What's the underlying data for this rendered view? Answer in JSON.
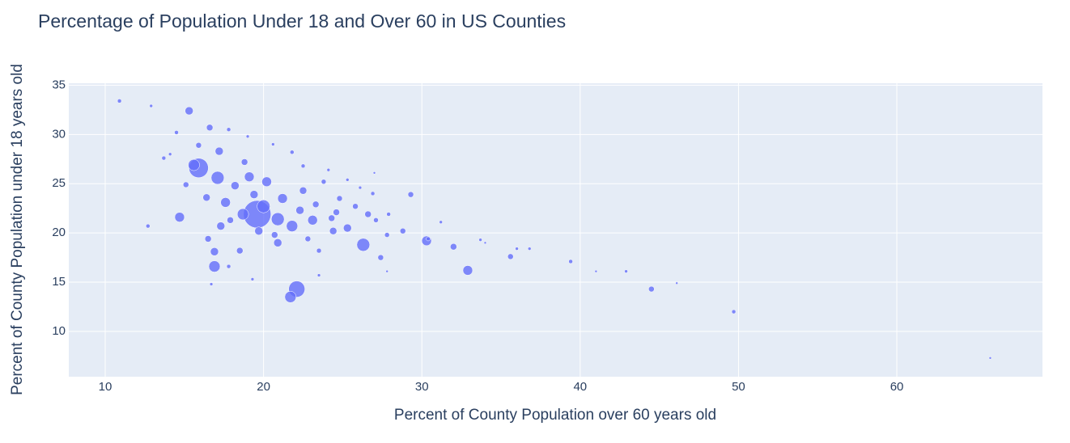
{
  "chart_data": {
    "type": "scatter",
    "title": "Percentage of Population Under 18 and Over 60 in US Counties",
    "x_label": "Percent of County Population over 60 years old",
    "y_label": "Percent of County Population under 18 years old",
    "color": "#636efa",
    "grid": true,
    "xlim": [
      7.7,
      69.2
    ],
    "ylim": [
      5.4,
      35.2
    ],
    "xticks": [
      10,
      20,
      30,
      40,
      50,
      60
    ],
    "yticks": [
      10,
      15,
      20,
      25,
      30,
      35
    ],
    "x": [
      15.9,
      19.6,
      22.1,
      21.7,
      16.9,
      26.3,
      32.9,
      14.7,
      30.3,
      20.9,
      20.0,
      21.8,
      23.1,
      17.1,
      15.3,
      16.6,
      17.2,
      19.1,
      20.2,
      17.6,
      18.2,
      16.9,
      29.3,
      44.5,
      49.7,
      65.9,
      10.9,
      12.9,
      14.5,
      12.7,
      39.4,
      35.6,
      42.9,
      41.0,
      46.1,
      36.8,
      33.7,
      32.0,
      27.4,
      25.3,
      24.3,
      26.6,
      16.4,
      17.9,
      18.5,
      20.9,
      23.5,
      27.8,
      28.8,
      15.6,
      17.3,
      16.5,
      18.8,
      21.8,
      23.8,
      24.8,
      25.8,
      22.5,
      21.2,
      19.4,
      18.7,
      22.3,
      23.3,
      24.6,
      27.1,
      27.9,
      31.2,
      34.0,
      36.0,
      15.1,
      13.7,
      14.1,
      15.9,
      17.8,
      19.0,
      20.6,
      17.8,
      16.7,
      19.3,
      23.5,
      27.8,
      26.9,
      26.1,
      27.0,
      25.3,
      24.1,
      22.5,
      30.4,
      20.7,
      19.7,
      22.8,
      24.4
    ],
    "y": [
      26.6,
      21.9,
      14.3,
      13.5,
      16.6,
      18.8,
      16.2,
      21.6,
      19.2,
      21.4,
      22.7,
      20.7,
      21.3,
      25.6,
      32.4,
      30.7,
      28.3,
      25.7,
      25.2,
      23.1,
      24.8,
      18.1,
      23.9,
      14.3,
      12.0,
      7.3,
      33.4,
      32.9,
      30.2,
      20.7,
      17.1,
      17.6,
      16.1,
      16.1,
      14.9,
      18.4,
      19.3,
      18.6,
      17.5,
      20.5,
      21.5,
      21.9,
      23.6,
      21.3,
      18.2,
      19.0,
      18.2,
      19.8,
      20.2,
      26.9,
      20.7,
      19.4,
      27.2,
      28.2,
      25.2,
      23.5,
      22.7,
      24.3,
      23.5,
      23.9,
      21.9,
      22.3,
      22.9,
      22.1,
      21.3,
      21.9,
      21.1,
      19.0,
      18.4,
      24.9,
      27.6,
      28.0,
      28.9,
      30.5,
      29.8,
      29.0,
      16.6,
      14.8,
      15.3,
      15.7,
      16.1,
      24.0,
      24.6,
      26.1,
      25.4,
      26.4,
      26.8,
      19.4,
      19.8,
      20.2,
      19.4,
      20.2
    ],
    "sizes": [
      24,
      34,
      20,
      14,
      14,
      16,
      12,
      12,
      12,
      16,
      16,
      14,
      12,
      16,
      10,
      8,
      10,
      12,
      12,
      12,
      10,
      10,
      7,
      7,
      5,
      3,
      5,
      4,
      5,
      5,
      5,
      7,
      4,
      3,
      3,
      4,
      4,
      8,
      7,
      10,
      8,
      8,
      9,
      8,
      8,
      10,
      6,
      6,
      7,
      14,
      10,
      8,
      8,
      5,
      6,
      7,
      7,
      9,
      12,
      10,
      14,
      10,
      8,
      8,
      6,
      5,
      4,
      3,
      4,
      7,
      5,
      4,
      7,
      5,
      4,
      4,
      5,
      4,
      4,
      4,
      3,
      5,
      4,
      3,
      4,
      4,
      5,
      5,
      8,
      10,
      7,
      9
    ]
  }
}
